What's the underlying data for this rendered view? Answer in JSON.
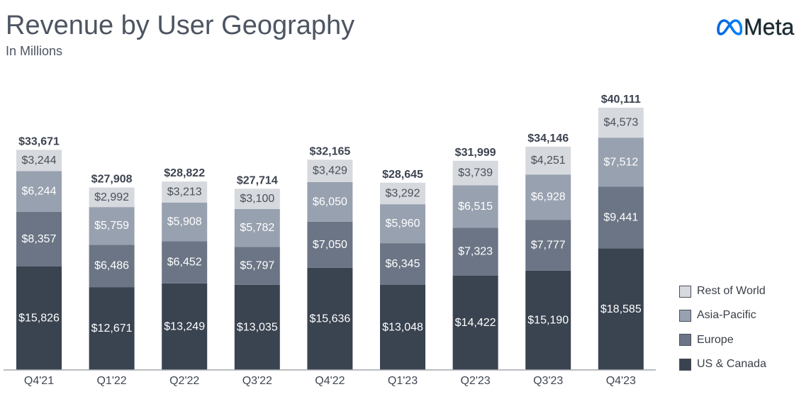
{
  "logo": {
    "icon": "meta-infinity-icon",
    "text": "Meta",
    "icon_colors": [
      "#0064e0",
      "#0082fb"
    ]
  },
  "chart_data": {
    "type": "bar",
    "stacked": true,
    "title": "Revenue by User Geography",
    "subtitle": "In Millions",
    "value_prefix": "$",
    "xlabel": "",
    "ylabel": "",
    "categories": [
      "Q4'21",
      "Q1'22",
      "Q2'22",
      "Q3'22",
      "Q4'22",
      "Q1'23",
      "Q2'23",
      "Q3'23",
      "Q4'23"
    ],
    "series": [
      {
        "name": "US & Canada",
        "color": "#3a4350",
        "label_color": "#ffffff",
        "values": [
          15826,
          12671,
          13249,
          13035,
          15636,
          13048,
          14422,
          15190,
          18585
        ]
      },
      {
        "name": "Europe",
        "color": "#6b7585",
        "label_color": "#ffffff",
        "values": [
          8357,
          6486,
          6452,
          5797,
          7050,
          6345,
          7323,
          7777,
          9441
        ]
      },
      {
        "name": "Asia-Pacific",
        "color": "#98a1af",
        "label_color": "#ffffff",
        "values": [
          6244,
          5759,
          5908,
          5782,
          6050,
          5960,
          6515,
          6928,
          7512
        ]
      },
      {
        "name": "Rest of World",
        "color": "#d6d9de",
        "label_color": "#4a505a",
        "values": [
          3244,
          2992,
          3213,
          3100,
          3429,
          3292,
          3739,
          4251,
          4573
        ]
      }
    ],
    "totals": [
      33671,
      27908,
      28822,
      27714,
      32165,
      28645,
      31999,
      34146,
      40111
    ],
    "ylim": [
      0,
      40111
    ],
    "grid": false,
    "legend_position": "right"
  }
}
